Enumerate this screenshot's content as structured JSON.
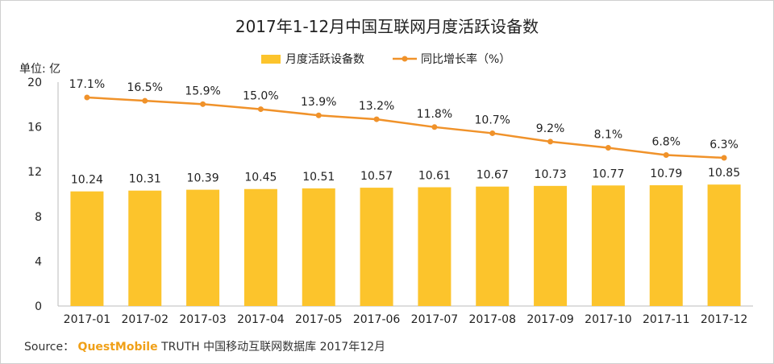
{
  "chart_data": {
    "type": "bar+line",
    "title": "2017年1-12月中国互联网月度活跃设备数",
    "y_unit_label": "单位: 亿",
    "categories": [
      "2017-01",
      "2017-02",
      "2017-03",
      "2017-04",
      "2017-05",
      "2017-06",
      "2017-07",
      "2017-08",
      "2017-09",
      "2017-10",
      "2017-11",
      "2017-12"
    ],
    "series": [
      {
        "name": "月度活跃设备数",
        "type": "bar",
        "values": [
          10.24,
          10.31,
          10.39,
          10.45,
          10.51,
          10.57,
          10.61,
          10.67,
          10.73,
          10.77,
          10.79,
          10.85
        ],
        "labels": [
          "10.24",
          "10.31",
          "10.39",
          "10.45",
          "10.51",
          "10.57",
          "10.61",
          "10.67",
          "10.73",
          "10.77",
          "10.79",
          "10.85"
        ],
        "color": "#fcc42c"
      },
      {
        "name": "同比增长率（%）",
        "type": "line",
        "values": [
          17.1,
          16.5,
          15.9,
          15.0,
          13.9,
          13.2,
          11.8,
          10.7,
          9.2,
          8.1,
          6.8,
          6.3
        ],
        "labels": [
          "17.1%",
          "16.5%",
          "15.9%",
          "15.0%",
          "13.9%",
          "13.2%",
          "11.8%",
          "10.7%",
          "9.2%",
          "8.1%",
          "6.8%",
          "6.3%"
        ],
        "color": "#f0922a"
      }
    ],
    "yticks": [
      "0",
      "4",
      "8",
      "12",
      "16",
      "20"
    ],
    "ylim": [
      0,
      20
    ],
    "legend": "top-center",
    "grid": false
  },
  "source": {
    "prefix": "Source：",
    "brand": "QuestMobile",
    "rest": "TRUTH 中国移动互联网数据库 2017年12月"
  }
}
